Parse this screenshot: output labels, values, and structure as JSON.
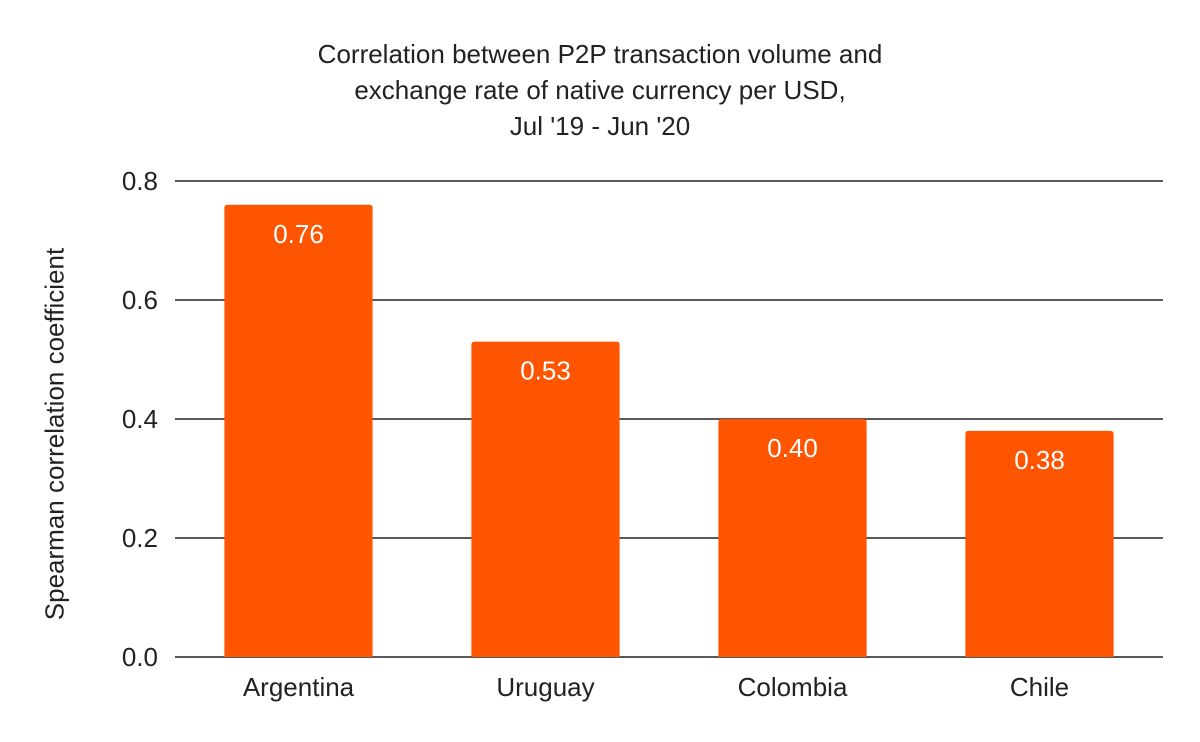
{
  "chart_data": {
    "type": "bar",
    "title_lines": [
      "Correlation between P2P transaction volume and",
      "exchange rate of native currency per USD,",
      "Jul '19 - Jun '20"
    ],
    "xlabel": "",
    "ylabel": "Spearman correlation coefficient",
    "categories": [
      "Argentina",
      "Uruguay",
      "Colombia",
      "Chile"
    ],
    "values": [
      0.76,
      0.53,
      0.4,
      0.38
    ],
    "value_labels": [
      "0.76",
      "0.53",
      "0.40",
      "0.38"
    ],
    "ylim": [
      0,
      0.8
    ],
    "yticks": [
      0.0,
      0.2,
      0.4,
      0.6,
      0.8
    ],
    "ytick_labels": [
      "0.0",
      "0.2",
      "0.4",
      "0.6",
      "0.8"
    ],
    "grid": true,
    "legend": "none",
    "bar_color": "#ff5500",
    "label_color": "#ffffff"
  }
}
